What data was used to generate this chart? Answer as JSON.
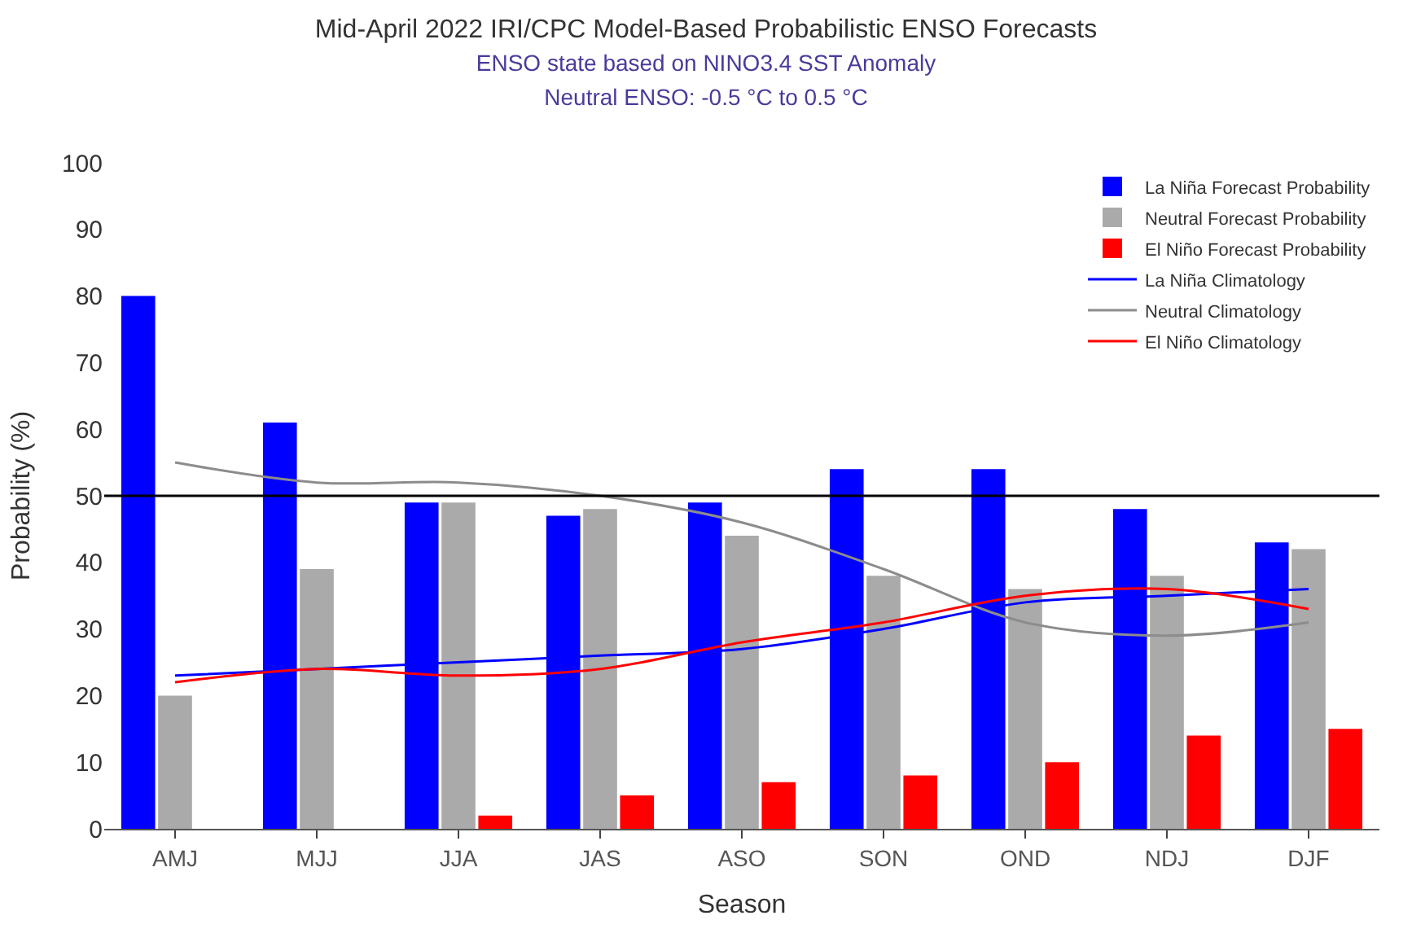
{
  "chart_data": {
    "type": "bar",
    "title": "Mid-April 2022 IRI/CPC Model-Based Probabilistic ENSO Forecasts",
    "subtitle": "ENSO state based on NINO3.4 SST Anomaly\nNeutral ENSO: -0.5 °C to 0.5 °C",
    "xlabel": "Season",
    "ylabel": "Probability (%)",
    "categories": [
      "AMJ",
      "MJJ",
      "JJA",
      "JAS",
      "ASO",
      "SON",
      "OND",
      "NDJ",
      "DJF"
    ],
    "series": [
      {
        "name": "La Niña Forecast Probability",
        "color": "#0000ff",
        "values": [
          80,
          61,
          49,
          47,
          49,
          54,
          54,
          48,
          43
        ]
      },
      {
        "name": "Neutral Forecast Probability",
        "color": "#aaaaaa",
        "values": [
          20,
          39,
          49,
          48,
          44,
          38,
          36,
          38,
          42
        ]
      },
      {
        "name": "El Niño Forecast Probability",
        "color": "#ff0000",
        "values": [
          0,
          0,
          2,
          5,
          7,
          8,
          10,
          14,
          15
        ]
      },
      {
        "name": "La Niña Climatology",
        "type": "line",
        "color": "#0000ff",
        "values": [
          23,
          24,
          25,
          26,
          27,
          30,
          34,
          35,
          36
        ]
      },
      {
        "name": "Neutral Climatology",
        "type": "line",
        "color": "#8c8c8c",
        "values": [
          55,
          52,
          52,
          50,
          46,
          39,
          31,
          29,
          31
        ]
      },
      {
        "name": "El Niño Climatology",
        "type": "line",
        "color": "#ff0000",
        "values": [
          22,
          24,
          23,
          24,
          28,
          31,
          35,
          36,
          33
        ]
      }
    ],
    "ylim": [
      0,
      100
    ],
    "yticks": [
      0,
      10,
      20,
      30,
      40,
      50,
      60,
      70,
      80,
      90,
      100
    ],
    "ref_lines": [
      {
        "axis": "y",
        "value": 50,
        "label": null,
        "color": "#000000"
      }
    ],
    "legend": "top right",
    "marker": "none"
  }
}
